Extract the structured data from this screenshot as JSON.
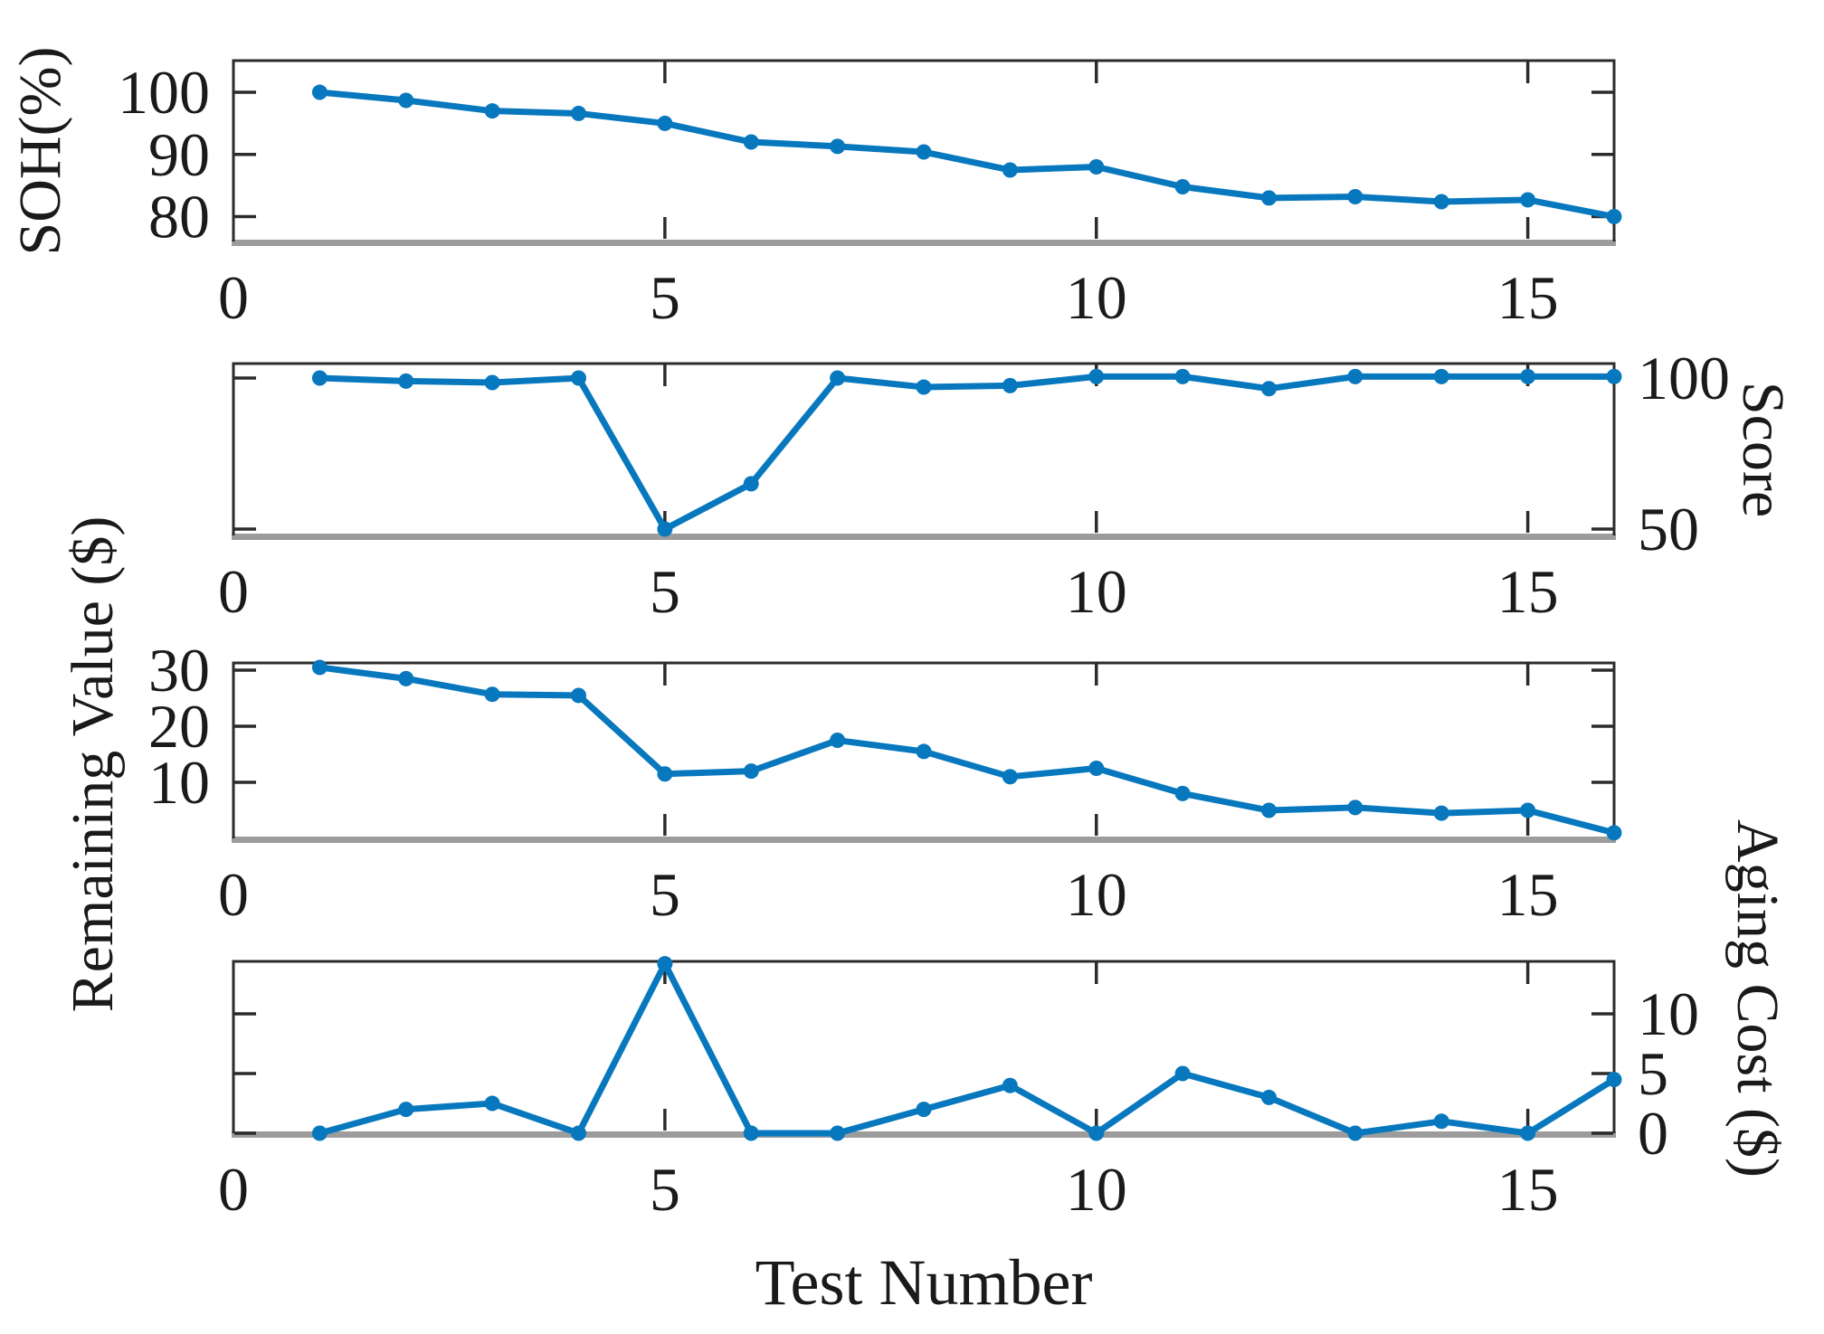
{
  "figure": {
    "xlabel": "Test Number",
    "line_color": "#0878BE",
    "frame_color": "#2b2b2b",
    "baseline_color": "#9c9c9c",
    "text_color": "#1a1a1a",
    "grid": false,
    "legend": null
  },
  "chart_data": [
    {
      "type": "line",
      "ylabel": "SOH(%)",
      "ylabel_side": "left",
      "x": [
        1,
        2,
        3,
        4,
        5,
        6,
        7,
        8,
        9,
        10,
        11,
        12,
        13,
        14,
        15,
        16
      ],
      "values": [
        100,
        98.7,
        97,
        96.6,
        95,
        92,
        91.3,
        90.4,
        87.5,
        88,
        84.8,
        83,
        83.2,
        82.4,
        82.7,
        80
      ],
      "yticks": [
        80,
        90,
        100
      ],
      "ylim": [
        76,
        105.1
      ],
      "xticks": [
        0,
        5,
        10,
        15
      ],
      "xlim": [
        0,
        16
      ]
    },
    {
      "type": "line",
      "ylabel": "Score",
      "ylabel_side": "right",
      "x": [
        1,
        2,
        3,
        4,
        5,
        6,
        7,
        8,
        9,
        10,
        11,
        12,
        13,
        14,
        15,
        16
      ],
      "values": [
        100,
        99,
        98.5,
        100,
        50,
        65,
        100,
        97,
        97.5,
        100.5,
        100.5,
        96.5,
        100.5,
        100.5,
        100.5,
        100.5
      ],
      "yticks": [
        50,
        100
      ],
      "ylim": [
        47.9,
        104.8
      ],
      "xticks": [
        0,
        5,
        10,
        15
      ],
      "xlim": [
        0,
        16
      ]
    },
    {
      "type": "line",
      "ylabel": "Remaining Value ($)",
      "ylabel_side": "left",
      "x": [
        1,
        2,
        3,
        4,
        5,
        6,
        7,
        8,
        9,
        10,
        11,
        12,
        13,
        14,
        15,
        16
      ],
      "values": [
        30.5,
        28.5,
        25.7,
        25.5,
        11.5,
        12,
        17.5,
        15.5,
        11,
        12.5,
        8,
        5,
        5.5,
        4.5,
        5,
        1
      ],
      "yticks": [
        10,
        20,
        30
      ],
      "ylim": [
        0,
        31.3
      ],
      "xticks": [
        0,
        5,
        10,
        15
      ],
      "xlim": [
        0,
        16
      ]
    },
    {
      "type": "line",
      "ylabel": "Aging Cost ($)",
      "ylabel_side": "right",
      "x": [
        1,
        2,
        3,
        4,
        5,
        6,
        7,
        8,
        9,
        10,
        11,
        12,
        13,
        14,
        15,
        16
      ],
      "values": [
        0,
        2,
        2.5,
        0,
        14.2,
        0,
        0,
        2,
        4,
        0,
        5,
        3,
        0,
        1,
        0,
        4.5
      ],
      "yticks": [
        0,
        5,
        10
      ],
      "ylim": [
        0,
        14.4
      ],
      "xticks": [
        0,
        5,
        10,
        15
      ],
      "xlim": [
        0,
        16
      ]
    }
  ]
}
